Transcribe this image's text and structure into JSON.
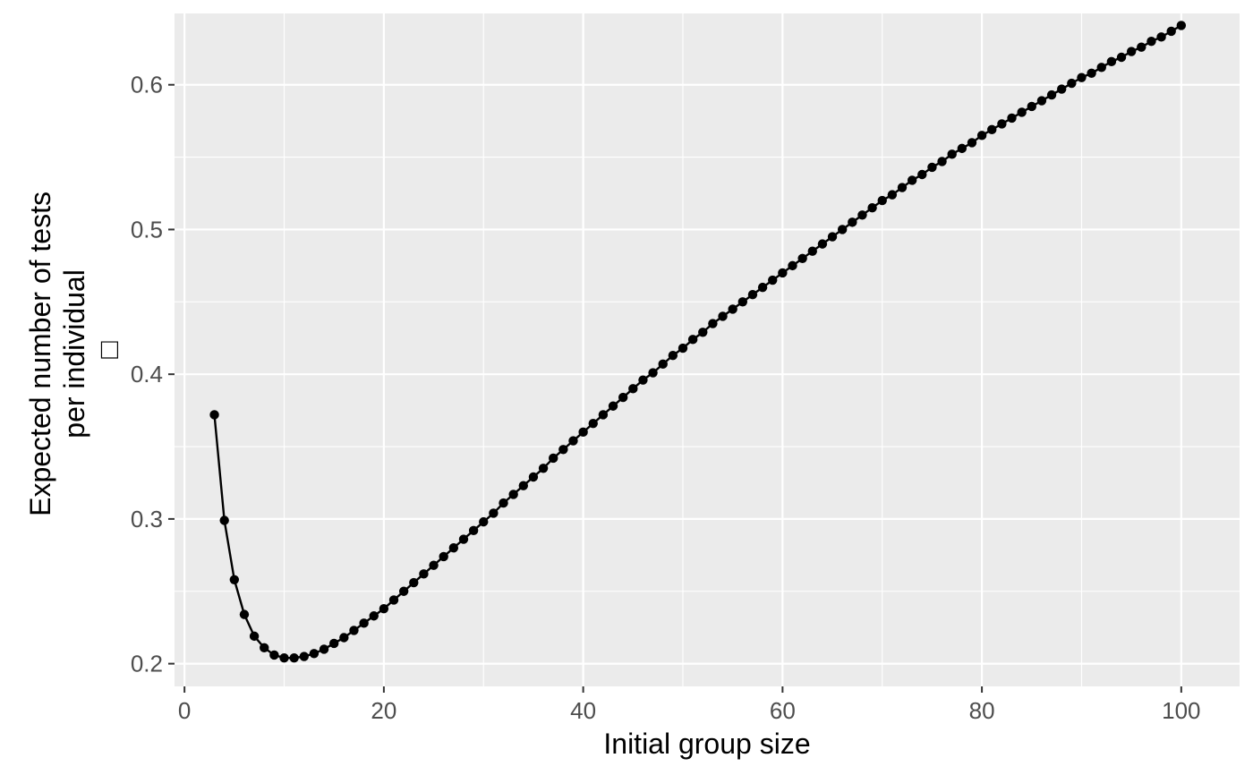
{
  "chart_data": {
    "type": "line",
    "title": "",
    "xlabel": "Initial group size",
    "ylabel_lines": [
      "Expected number of tests",
      "per individual",
      "□"
    ],
    "xlim": [
      -1,
      105.85
    ],
    "ylim": [
      0.1843,
      0.6493
    ],
    "xticks": [
      0,
      20,
      40,
      60,
      80,
      100
    ],
    "yticks": [
      0.2,
      0.3,
      0.4,
      0.5,
      0.6
    ],
    "ytick_labels": [
      "0.2",
      "0.3",
      "0.4",
      "0.5",
      "0.6"
    ],
    "grid": true,
    "legend": "none",
    "colors": {
      "panel": "#ebebeb",
      "grid": "#ffffff",
      "series": "#000000"
    },
    "series": [
      {
        "x": [
          3,
          4,
          5,
          6,
          7,
          8,
          9,
          10,
          11,
          12,
          13,
          14,
          15,
          16,
          17,
          18,
          19,
          20,
          21,
          22,
          23,
          24,
          25,
          26,
          27,
          28,
          29,
          30,
          31,
          32,
          33,
          34,
          35,
          36,
          37,
          38,
          39,
          40,
          41,
          42,
          43,
          44,
          45,
          46,
          47,
          48,
          49,
          50,
          51,
          52,
          53,
          54,
          55,
          56,
          57,
          58,
          59,
          60,
          61,
          62,
          63,
          64,
          65,
          66,
          67,
          68,
          69,
          70,
          71,
          72,
          73,
          74,
          75,
          76,
          77,
          78,
          79,
          80,
          81,
          82,
          83,
          84,
          85,
          86,
          87,
          88,
          89,
          90,
          91,
          92,
          93,
          94,
          95,
          96,
          97,
          98,
          99,
          100
        ],
        "values": [
          0.372,
          0.299,
          0.258,
          0.234,
          0.219,
          0.211,
          0.206,
          0.204,
          0.204,
          0.205,
          0.207,
          0.21,
          0.214,
          0.218,
          0.223,
          0.228,
          0.233,
          0.238,
          0.244,
          0.25,
          0.256,
          0.262,
          0.268,
          0.274,
          0.28,
          0.286,
          0.292,
          0.298,
          0.304,
          0.311,
          0.317,
          0.323,
          0.329,
          0.335,
          0.342,
          0.348,
          0.354,
          0.36,
          0.366,
          0.372,
          0.378,
          0.384,
          0.39,
          0.396,
          0.401,
          0.407,
          0.413,
          0.418,
          0.424,
          0.429,
          0.435,
          0.44,
          0.445,
          0.45,
          0.455,
          0.46,
          0.465,
          0.47,
          0.475,
          0.48,
          0.485,
          0.49,
          0.495,
          0.5,
          0.505,
          0.51,
          0.515,
          0.52,
          0.524,
          0.529,
          0.534,
          0.538,
          0.543,
          0.547,
          0.552,
          0.556,
          0.56,
          0.565,
          0.569,
          0.573,
          0.577,
          0.581,
          0.585,
          0.589,
          0.593,
          0.597,
          0.601,
          0.605,
          0.608,
          0.612,
          0.616,
          0.619,
          0.623,
          0.626,
          0.63,
          0.633,
          0.637,
          0.641
        ]
      }
    ]
  }
}
